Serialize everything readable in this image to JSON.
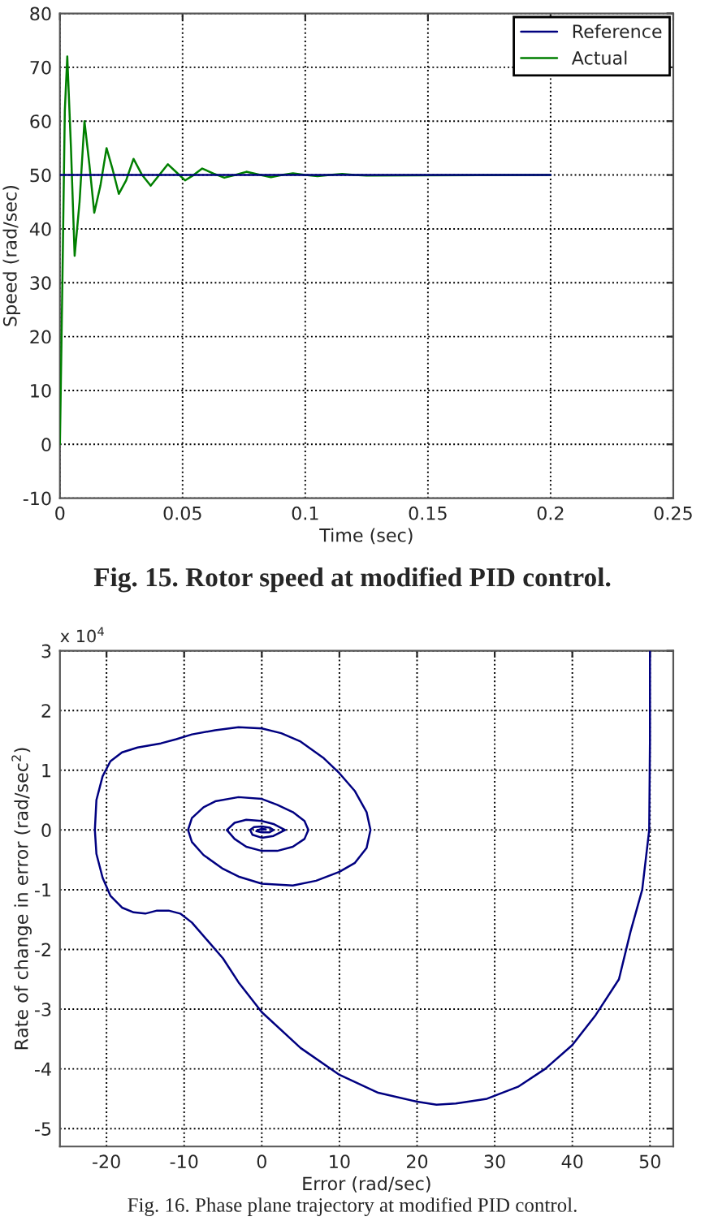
{
  "chart_data": [
    {
      "type": "line",
      "xlabel": "Time (sec)",
      "ylabel": "Speed (rad/sec)",
      "xlim": [
        0,
        0.25
      ],
      "xticks": [
        0,
        0.05,
        0.1,
        0.15,
        0.2,
        0.25
      ],
      "ylim": [
        -10,
        80
      ],
      "yticks": [
        -10,
        0,
        10,
        20,
        30,
        40,
        50,
        60,
        70,
        80
      ],
      "grid": true,
      "legend": "top right",
      "series": [
        {
          "name": "Reference",
          "color": "#00007f",
          "x": [
            0,
            0.2
          ],
          "values": [
            50,
            50
          ]
        },
        {
          "name": "Actual",
          "color": "#007f00",
          "x": [
            0,
            0.001,
            0.002,
            0.003,
            0.0045,
            0.006,
            0.008,
            0.01,
            0.012,
            0.014,
            0.0165,
            0.019,
            0.0215,
            0.024,
            0.027,
            0.03,
            0.0335,
            0.037,
            0.0405,
            0.044,
            0.0475,
            0.051,
            0.0545,
            0.058,
            0.0625,
            0.067,
            0.0715,
            0.076,
            0.081,
            0.086,
            0.0905,
            0.095,
            0.1,
            0.105,
            0.11,
            0.115,
            0.12,
            0.125,
            0.2
          ],
          "values": [
            0,
            30,
            62,
            72,
            55,
            35,
            45,
            60,
            52,
            43,
            48,
            55,
            51,
            46.5,
            49,
            53,
            50,
            48,
            50,
            52,
            50.5,
            49,
            50,
            51.2,
            50.3,
            49.5,
            50,
            50.6,
            50.1,
            49.6,
            50,
            50.3,
            50,
            49.8,
            50,
            50.2,
            50,
            49.9,
            50
          ]
        }
      ],
      "annotations": [
        "Fig. 15. Rotor speed at modified PID control."
      ]
    },
    {
      "type": "line",
      "xlabel": "Error (rad/sec)",
      "ylabel": "Rate of change in error (rad/sec$^{2}$)",
      "xlim": [
        -26,
        53
      ],
      "xticks": [
        -20,
        -10,
        0,
        10,
        20,
        30,
        40,
        50
      ],
      "ylim": [
        -5.3,
        3
      ],
      "yticks": [
        -5,
        -4,
        -3,
        -2,
        -1,
        0,
        1,
        2,
        3
      ],
      "grid": true,
      "series": [
        {
          "color": "#000080",
          "x": [
            50,
            50,
            49.9,
            49,
            47.5,
            46,
            43,
            40,
            36.5,
            33,
            29,
            25,
            22.5,
            20,
            15,
            10,
            5,
            0,
            -3,
            -5,
            -7,
            -9,
            -10.5,
            -12,
            -13.5,
            -15,
            -16.5,
            -18,
            -19.5,
            -20.5,
            -21.3,
            -21.5,
            -21.3,
            -20.5,
            -19.5,
            -18,
            -16,
            -13,
            -11,
            -9,
            -6,
            -3,
            0,
            2.5,
            5,
            8,
            10,
            12,
            13.5,
            14,
            13.5,
            12,
            10,
            7,
            4,
            0,
            -3,
            -5,
            -7.5,
            -9,
            -9.5,
            -9,
            -7.5,
            -6,
            -3,
            0,
            2,
            4,
            5.5,
            6,
            5.5,
            4,
            2,
            0,
            -2,
            -3.5,
            -4.5,
            -3.5,
            -2,
            0,
            1.5,
            3,
            1.5,
            0,
            -1.2,
            -1.5,
            -1,
            0,
            1,
            1.5,
            1,
            0,
            -0.7,
            -0.5,
            0,
            0.5,
            0
          ],
          "values": [
            3,
            1.5,
            0,
            -1,
            -1.7,
            -2.5,
            -3.1,
            -3.6,
            -4,
            -4.3,
            -4.5,
            -4.58,
            -4.6,
            -4.55,
            -4.4,
            -4.1,
            -3.65,
            -3.05,
            -2.55,
            -2.15,
            -1.85,
            -1.55,
            -1.4,
            -1.35,
            -1.35,
            -1.4,
            -1.38,
            -1.3,
            -1.1,
            -0.8,
            -0.4,
            0,
            0.5,
            0.9,
            1.15,
            1.3,
            1.38,
            1.45,
            1.52,
            1.6,
            1.67,
            1.72,
            1.7,
            1.62,
            1.48,
            1.2,
            0.95,
            0.65,
            0.3,
            0,
            -0.3,
            -0.55,
            -0.7,
            -0.85,
            -0.93,
            -0.9,
            -0.78,
            -0.65,
            -0.42,
            -0.2,
            0,
            0.2,
            0.38,
            0.48,
            0.55,
            0.52,
            0.42,
            0.3,
            0.15,
            0,
            -0.15,
            -0.28,
            -0.35,
            -0.35,
            -0.28,
            -0.15,
            0,
            0.12,
            0.17,
            0.15,
            0.1,
            0,
            -0.1,
            -0.13,
            -0.08,
            0,
            0.05,
            0.06,
            0.04,
            0,
            -0.04,
            -0.04,
            -0.02,
            0,
            0.02,
            0.01,
            0
          ]
        }
      ],
      "annotations": [
        "x 10$^{4}$",
        "Fig. 16. Phase plane trajectory at modified PID control."
      ]
    }
  ]
}
